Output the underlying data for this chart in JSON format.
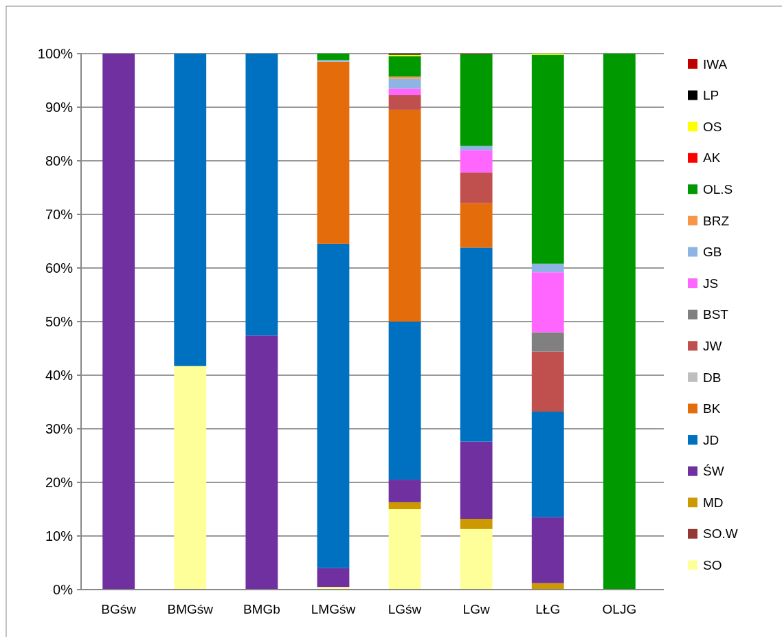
{
  "chart_data": {
    "type": "bar",
    "stacked": true,
    "categories": [
      "BGśw",
      "BMGśw",
      "BMGb",
      "LMGśw",
      "LGśw",
      "LGw",
      "LŁG",
      "OLJG"
    ],
    "ylim": [
      0,
      100
    ],
    "yticks": [
      {
        "value": 0,
        "label": "0%"
      },
      {
        "value": 10,
        "label": "10%"
      },
      {
        "value": 20,
        "label": "20%"
      },
      {
        "value": 30,
        "label": "30%"
      },
      {
        "value": 40,
        "label": "40%"
      },
      {
        "value": 50,
        "label": "50%"
      },
      {
        "value": 60,
        "label": "60%"
      },
      {
        "value": 70,
        "label": "70%"
      },
      {
        "value": 80,
        "label": "80%"
      },
      {
        "value": 90,
        "label": "90%"
      },
      {
        "value": 100,
        "label": "100%"
      }
    ],
    "grid": "y",
    "legend": "right",
    "series": [
      {
        "name": "SO",
        "color": "#ffff99",
        "values": [
          0,
          41.7,
          0,
          0.5,
          15,
          11.3,
          0,
          0
        ]
      },
      {
        "name": "SO.W",
        "color": "#953735",
        "values": [
          0,
          0,
          0,
          0,
          0,
          0,
          0,
          0
        ]
      },
      {
        "name": "MD",
        "color": "#cc9900",
        "values": [
          0,
          0,
          0,
          0,
          1.3,
          1.9,
          1.2,
          0
        ]
      },
      {
        "name": "ŚW",
        "color": "#7030a0",
        "values": [
          100,
          0,
          47.4,
          3.5,
          4.2,
          14.4,
          12.3,
          0
        ]
      },
      {
        "name": "JD",
        "color": "#0070c0",
        "values": [
          0,
          58.3,
          52.6,
          60.5,
          29.5,
          36.2,
          19.7,
          0
        ]
      },
      {
        "name": "BK",
        "color": "#e46c0a",
        "values": [
          0,
          0,
          0,
          34,
          39.5,
          8.3,
          0,
          0
        ]
      },
      {
        "name": "DB",
        "color": "#bfbfbf",
        "values": [
          0,
          0,
          0,
          0,
          0,
          0,
          0,
          0
        ]
      },
      {
        "name": "JW",
        "color": "#c0504d",
        "values": [
          0,
          0,
          0,
          0,
          2.8,
          5.7,
          11.2,
          0
        ]
      },
      {
        "name": "BST",
        "color": "#808080",
        "values": [
          0,
          0,
          0,
          0,
          0,
          0,
          3.6,
          0
        ]
      },
      {
        "name": "JS",
        "color": "#ff66ff",
        "values": [
          0,
          0,
          0,
          0,
          1.2,
          4.2,
          11.2,
          0
        ]
      },
      {
        "name": "GB",
        "color": "#8db4e2",
        "values": [
          0,
          0,
          0,
          0.3,
          1.8,
          0.8,
          1.6,
          0
        ]
      },
      {
        "name": "BRZ",
        "color": "#f79646",
        "values": [
          0,
          0,
          0,
          0,
          0.4,
          0,
          0,
          0
        ]
      },
      {
        "name": "OL.S",
        "color": "#009900",
        "values": [
          0,
          0,
          0,
          1.2,
          3.8,
          17.1,
          39.0,
          100
        ]
      },
      {
        "name": "AK",
        "color": "#ff0000",
        "values": [
          0,
          0,
          0,
          0,
          0,
          0,
          0,
          0
        ]
      },
      {
        "name": "OS",
        "color": "#ffff00",
        "values": [
          0,
          0,
          0,
          0,
          0.3,
          0,
          0.2,
          0
        ]
      },
      {
        "name": "LP",
        "color": "#000000",
        "values": [
          0,
          0,
          0,
          0,
          0.2,
          0,
          0,
          0
        ]
      },
      {
        "name": "IWA",
        "color": "#c00000",
        "values": [
          0,
          0,
          0,
          0,
          0,
          0.1,
          0,
          0
        ]
      }
    ]
  }
}
